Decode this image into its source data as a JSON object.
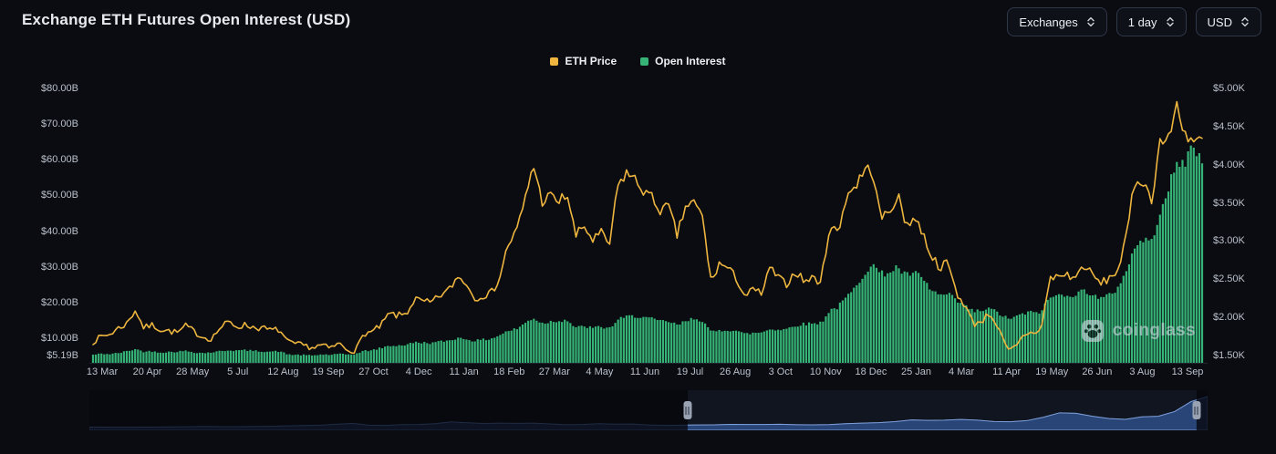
{
  "page": {
    "title": "Exchange ETH Futures Open Interest (USD)"
  },
  "controls": {
    "exchanges_label": "Exchanges",
    "interval_label": "1 day",
    "currency_label": "USD"
  },
  "legend": [
    {
      "label": "ETH Price",
      "color": "#eeb53f"
    },
    {
      "label": "Open Interest",
      "color": "#36b377"
    }
  ],
  "watermark": {
    "text": "coinglass"
  },
  "chart_data": {
    "type": "mixed",
    "title": "Exchange ETH Futures Open Interest (USD)",
    "x_range": {
      "start": "13 Mar 2023",
      "end": "13 Sep 2025",
      "resolution": "weekly"
    },
    "x_ticks": [
      "13 Mar",
      "20 Apr",
      "28 May",
      "5 Jul",
      "12 Aug",
      "19 Sep",
      "27 Oct",
      "4 Dec",
      "11 Jan",
      "18 Feb",
      "27 Mar",
      "4 May",
      "11 Jun",
      "19 Jul",
      "26 Aug",
      "3 Oct",
      "10 Nov",
      "18 Dec",
      "25 Jan",
      "4 Mar",
      "11 Apr",
      "19 May",
      "26 Jun",
      "3 Aug",
      "13 Sep"
    ],
    "left_axis": {
      "series": "Open Interest",
      "unit": "USD billions",
      "ticks": [
        {
          "label": "$80.00B",
          "value": 80
        },
        {
          "label": "$70.00B",
          "value": 70
        },
        {
          "label": "$60.00B",
          "value": 60
        },
        {
          "label": "$50.00B",
          "value": 50
        },
        {
          "label": "$40.00B",
          "value": 40
        },
        {
          "label": "$30.00B",
          "value": 30
        },
        {
          "label": "$20.00B",
          "value": 20
        },
        {
          "label": "$10.00B",
          "value": 10
        },
        {
          "label": "$5.19B",
          "value": 5.19
        }
      ]
    },
    "right_axis": {
      "series": "ETH Price",
      "unit": "USD thousands",
      "ticks": [
        {
          "label": "$5.00K",
          "value": 5.0
        },
        {
          "label": "$4.50K",
          "value": 4.5
        },
        {
          "label": "$4.00K",
          "value": 4.0
        },
        {
          "label": "$3.50K",
          "value": 3.5
        },
        {
          "label": "$3.00K",
          "value": 3.0
        },
        {
          "label": "$2.50K",
          "value": 2.5
        },
        {
          "label": "$2.00K",
          "value": 2.0
        },
        {
          "label": "$1.50K",
          "value": 1.5
        }
      ]
    },
    "series": [
      {
        "name": "ETH Price",
        "type": "line",
        "axis": "right",
        "color": "#eeb53f",
        "unit": "USD thousands",
        "values": [
          1.68,
          1.75,
          1.78,
          1.86,
          1.92,
          2.1,
          1.86,
          1.9,
          1.84,
          1.82,
          1.8,
          1.89,
          1.81,
          1.74,
          1.72,
          1.86,
          1.94,
          1.88,
          1.9,
          1.87,
          1.86,
          1.83,
          1.84,
          1.67,
          1.65,
          1.63,
          1.6,
          1.64,
          1.59,
          1.66,
          1.58,
          1.56,
          1.79,
          1.81,
          1.89,
          2.05,
          2.02,
          2.05,
          2.24,
          2.2,
          2.19,
          2.29,
          2.35,
          2.53,
          2.47,
          2.25,
          2.29,
          2.31,
          2.51,
          2.95,
          3.12,
          3.52,
          4.02,
          3.52,
          3.59,
          3.51,
          3.62,
          3.06,
          3.2,
          3.01,
          3.1,
          2.95,
          3.72,
          3.9,
          3.8,
          3.67,
          3.56,
          3.41,
          3.44,
          3.07,
          3.46,
          3.5,
          3.31,
          2.46,
          2.71,
          2.64,
          2.51,
          2.28,
          2.36,
          2.31,
          2.66,
          2.5,
          2.44,
          2.61,
          2.47,
          2.52,
          2.46,
          3.21,
          3.1,
          3.61,
          3.71,
          3.91,
          3.96,
          3.31,
          3.36,
          3.61,
          3.22,
          3.31,
          3.11,
          2.81,
          2.66,
          2.71,
          2.31,
          2.16,
          1.91,
          1.96,
          2.06,
          1.84,
          1.56,
          1.61,
          1.78,
          1.8,
          1.84,
          2.51,
          2.54,
          2.56,
          2.51,
          2.69,
          2.56,
          2.44,
          2.51,
          2.61,
          3.01,
          3.76,
          3.81,
          3.51,
          4.31,
          4.31,
          4.79,
          4.41,
          4.31,
          4.3
        ]
      },
      {
        "name": "Open Interest",
        "type": "bar",
        "axis": "left",
        "color": "#36b377",
        "unit": "USD billions",
        "values": [
          5.4,
          5.7,
          5.6,
          5.9,
          6.4,
          7.0,
          6.3,
          6.4,
          6.1,
          6.2,
          6.3,
          6.5,
          6.1,
          5.9,
          6.1,
          6.4,
          6.7,
          6.6,
          6.7,
          6.5,
          6.4,
          6.3,
          6.4,
          5.5,
          5.4,
          5.3,
          5.2,
          5.5,
          5.4,
          5.6,
          5.5,
          5.6,
          6.5,
          6.7,
          7.3,
          7.9,
          8.0,
          8.2,
          8.9,
          8.8,
          8.7,
          9.1,
          9.4,
          10.1,
          9.9,
          9.3,
          9.6,
          9.9,
          10.9,
          12.1,
          12.6,
          14.2,
          15.8,
          14.2,
          14.7,
          15.0,
          15.2,
          12.9,
          13.4,
          12.9,
          13.2,
          12.8,
          15.2,
          16.0,
          16.3,
          16.0,
          15.4,
          14.8,
          14.7,
          13.7,
          14.7,
          15.7,
          15.0,
          11.7,
          12.2,
          12.4,
          12.2,
          11.2,
          11.5,
          11.7,
          12.7,
          12.4,
          12.7,
          13.7,
          14.0,
          14.2,
          14.4,
          17.8,
          18.8,
          21.5,
          24.0,
          28.0,
          31.0,
          28.0,
          28.5,
          30.0,
          27.5,
          28.5,
          26.5,
          23.5,
          22.0,
          22.3,
          20.5,
          19.0,
          17.5,
          17.8,
          18.3,
          17.0,
          15.5,
          16.0,
          17.0,
          17.3,
          17.5,
          21.5,
          22.0,
          22.5,
          22.0,
          23.5,
          22.5,
          21.0,
          22.0,
          24.0,
          29.0,
          35.0,
          38.0,
          36.5,
          46.0,
          52.0,
          58.0,
          60.0,
          64.0,
          59.0
        ]
      }
    ],
    "navigator": {
      "description": "full-history open interest minimap",
      "values": [
        0.9,
        1.0,
        0.6,
        0.8,
        1.0,
        1.3,
        1.6,
        2.2,
        1.9,
        1.8,
        2.2,
        2.6,
        3.4,
        4.2,
        4.8,
        6.5,
        8.5,
        4.8,
        4.4,
        6.0,
        6.2,
        7.8,
        11.5,
        9.5,
        8.2,
        8.8,
        8.4,
        8.8,
        7.2,
        5.8,
        6.2,
        7.8,
        6.8,
        7.0,
        5.2,
        4.4,
        4.8,
        5.2,
        5.5,
        6.4,
        6.2,
        6.1,
        6.6,
        5.7,
        5.4,
        5.9,
        7.8,
        8.9,
        9.9,
        11.8,
        15.3,
        14.3,
        14.8,
        16.1,
        14.9,
        12.1,
        11.6,
        13.8,
        20.5,
        29.5,
        28.5,
        22.5,
        18.0,
        16.5,
        21.5,
        22.5,
        32.0,
        52.0,
        62.0
      ],
      "selected_range": [
        0.535,
        0.99
      ]
    }
  }
}
